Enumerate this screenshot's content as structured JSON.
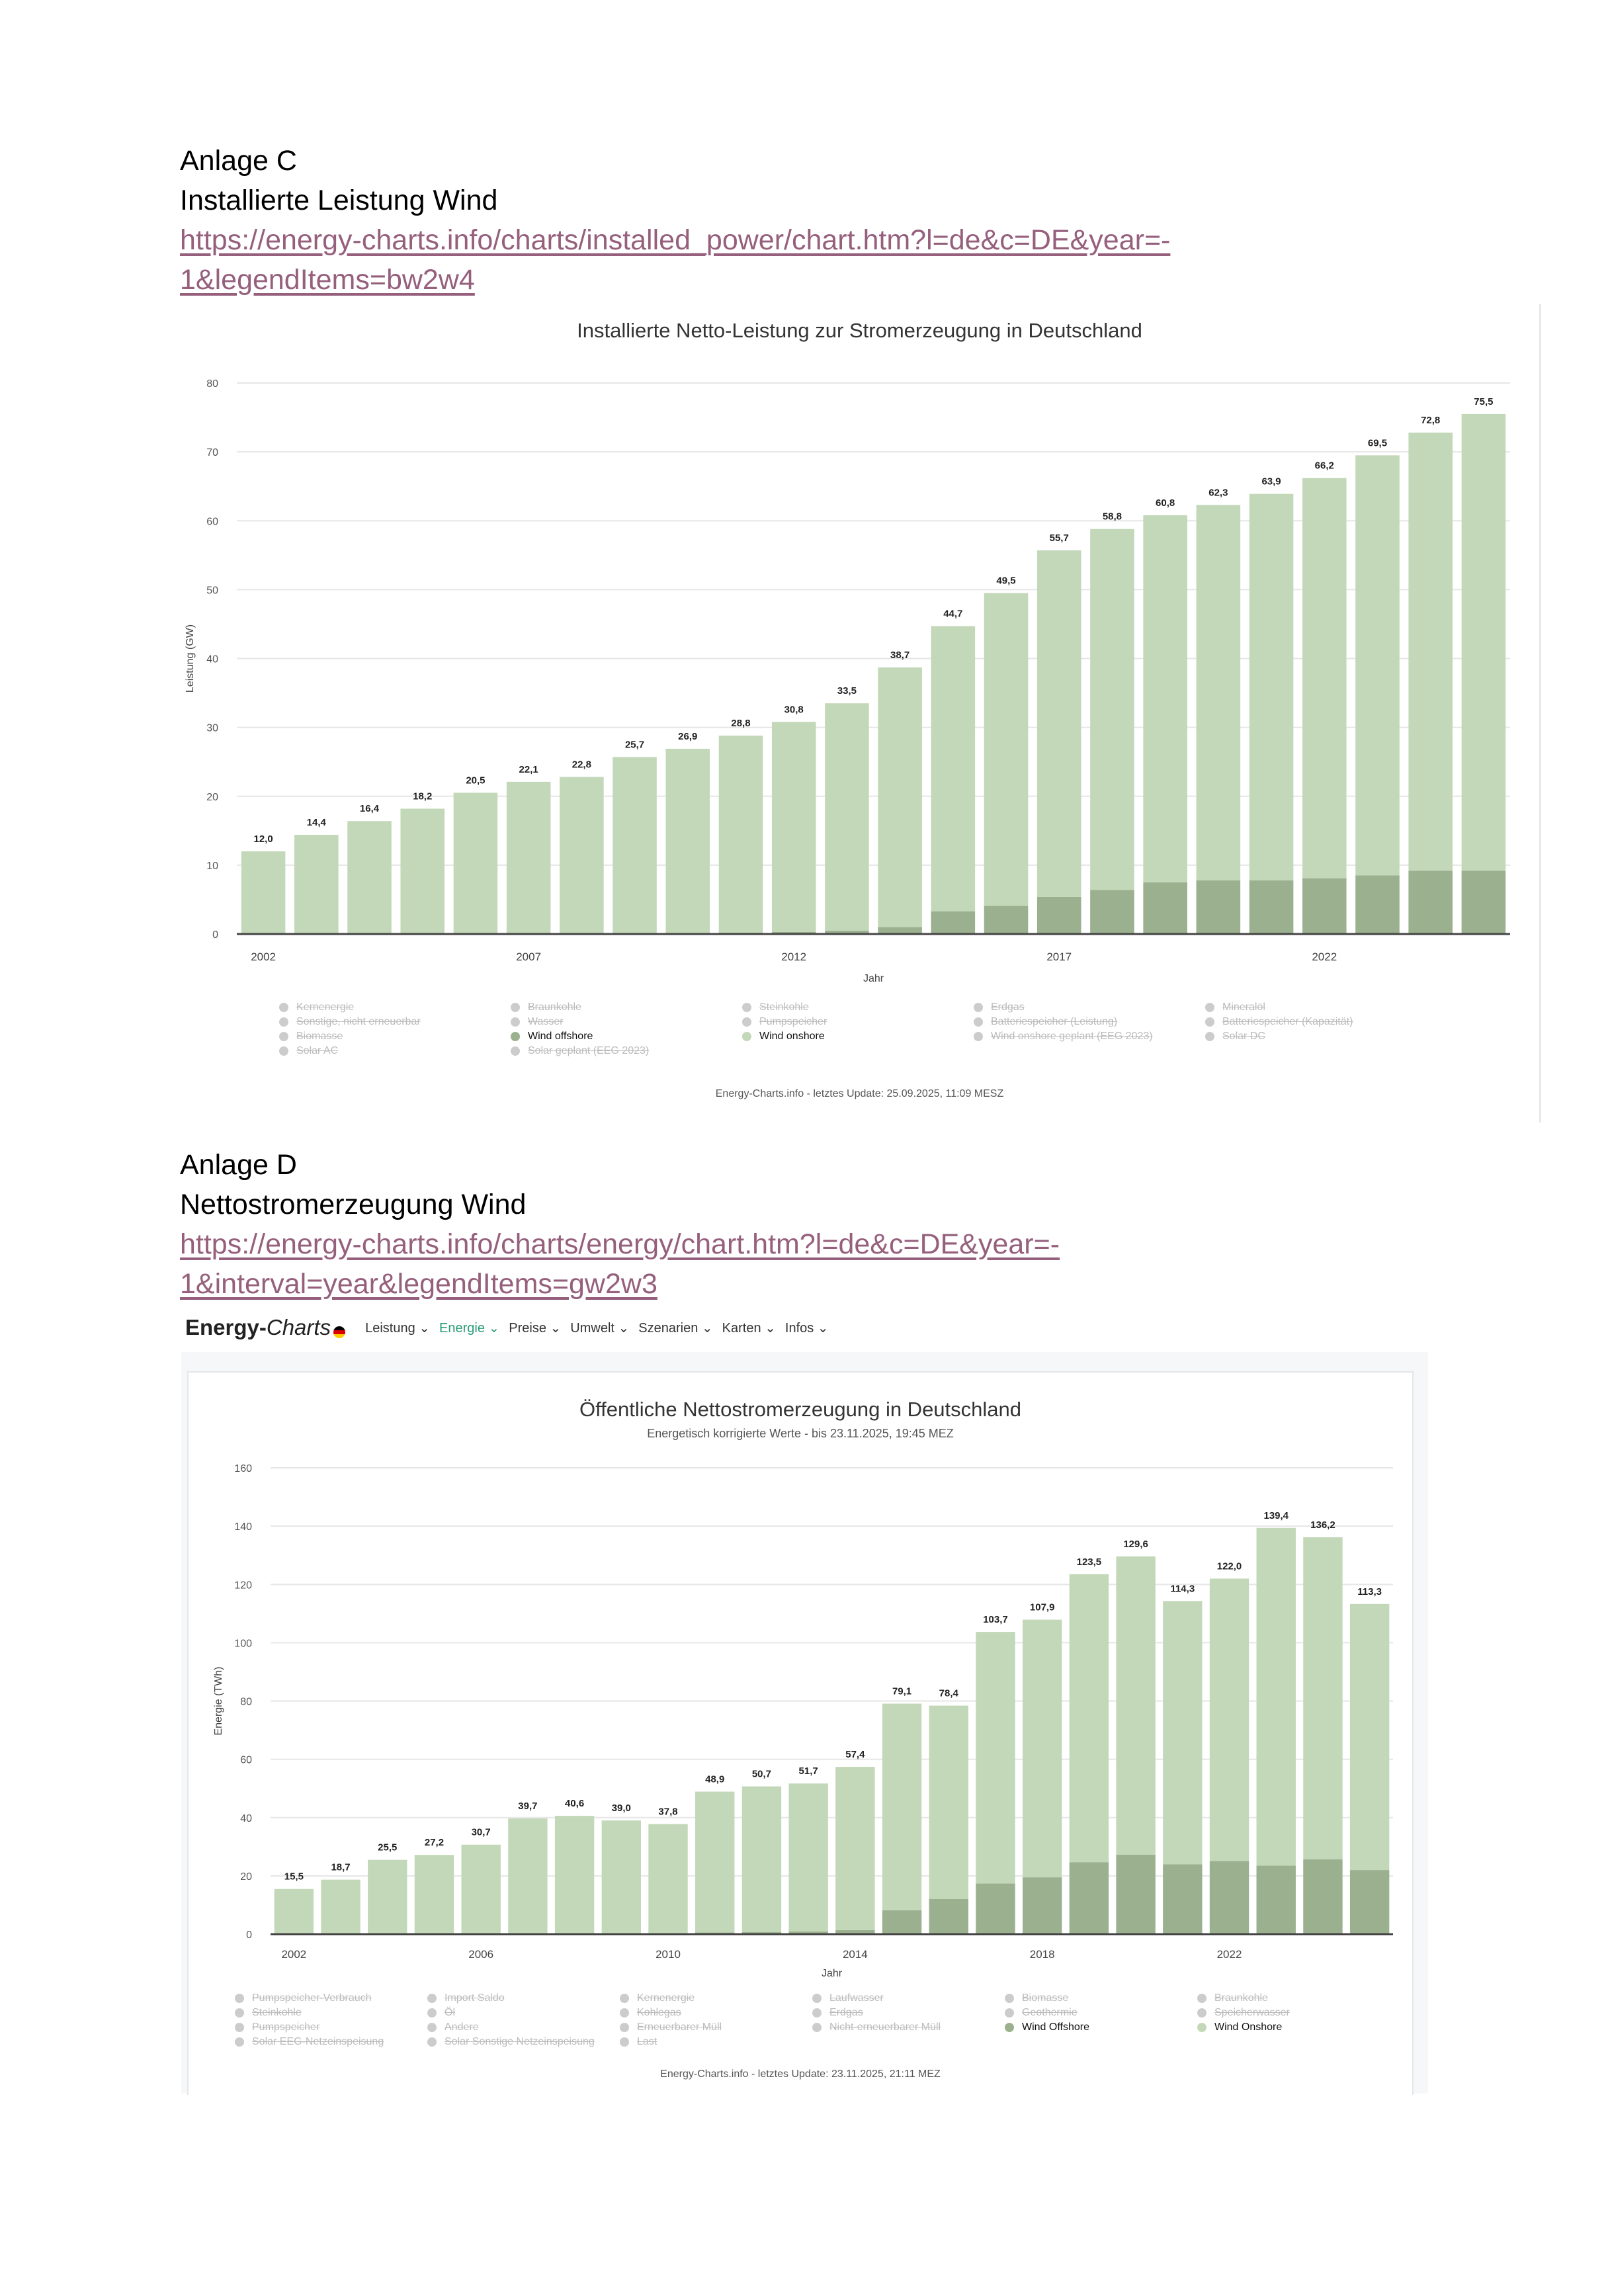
{
  "anlage_c": {
    "heading": "Anlage C",
    "subheading": "Installierte Leistung Wind",
    "link_line1": "https://energy-charts.info/charts/installed_power/chart.htm?l=de&c=DE&year=-",
    "link_line2": "1&legendItems=bw2w4"
  },
  "anlage_d": {
    "heading": "Anlage D",
    "subheading": "Nettostromerzeugung Wind",
    "link_line1": "https://energy-charts.info/charts/energy/chart.htm?l=de&c=DE&year=-",
    "link_line2": "1&interval=year&legendItems=gw2w3"
  },
  "nav": {
    "logo_bold": "Energy-",
    "logo_italic": "Charts",
    "items": [
      {
        "label": "Leistung ⌄"
      },
      {
        "label": "Energie ⌄",
        "active": true
      },
      {
        "label": "Preise ⌄"
      },
      {
        "label": "Umwelt ⌄"
      },
      {
        "label": "Szenarien ⌄"
      },
      {
        "label": "Karten ⌄"
      },
      {
        "label": "Infos ⌄"
      }
    ]
  },
  "colors": {
    "onshore": "#c3d8b9",
    "offshore": "#9bb08f",
    "link": "#96607d",
    "nav_active": "#2a9d7a"
  },
  "chart_data": [
    {
      "type": "bar",
      "stacked": true,
      "title": "Installierte Netto-Leistung zur Stromerzeugung in Deutschland",
      "xlabel": "Jahr",
      "ylabel": "Leistung (GW)",
      "ylim": [
        0,
        80
      ],
      "yticks": [
        0,
        10,
        20,
        30,
        40,
        50,
        60,
        70,
        80
      ],
      "xticks": [
        "2002",
        "2007",
        "2012",
        "2017",
        "2022"
      ],
      "grid": true,
      "legend_placement": "bottom",
      "categories": [
        "2002",
        "2003",
        "2004",
        "2005",
        "2006",
        "2007",
        "2008",
        "2009",
        "2010",
        "2011",
        "2012",
        "2013",
        "2014",
        "2015",
        "2016",
        "2017",
        "2018",
        "2019",
        "2020",
        "2021",
        "2022",
        "2023",
        "2024",
        "2025"
      ],
      "totals": [
        12.0,
        14.4,
        16.4,
        18.2,
        20.5,
        22.1,
        22.8,
        25.7,
        26.9,
        28.8,
        30.8,
        33.5,
        38.7,
        44.7,
        49.5,
        55.7,
        58.8,
        60.8,
        62.3,
        63.9,
        66.2,
        69.5,
        72.8,
        75.5
      ],
      "series": [
        {
          "name": "Wind offshore",
          "color": "#9bb08f",
          "values": [
            0,
            0,
            0,
            0,
            0,
            0,
            0,
            0.1,
            0.1,
            0.2,
            0.3,
            0.5,
            1.0,
            3.3,
            4.1,
            5.4,
            6.4,
            7.5,
            7.8,
            7.8,
            8.1,
            8.5,
            9.2,
            9.2
          ]
        },
        {
          "name": "Wind onshore",
          "color": "#c3d8b9",
          "values": [
            12.0,
            14.4,
            16.4,
            18.2,
            20.5,
            22.1,
            22.8,
            25.6,
            26.8,
            28.6,
            30.5,
            33.0,
            37.7,
            41.4,
            45.4,
            50.3,
            52.4,
            53.3,
            54.5,
            56.1,
            58.1,
            61.0,
            63.6,
            66.3
          ]
        }
      ],
      "legend_columns": [
        [
          {
            "label": "Kernenergie"
          },
          {
            "label": "Sonstige, nicht erneuerbar"
          },
          {
            "label": "Biomasse"
          },
          {
            "label": "Solar AC"
          }
        ],
        [
          {
            "label": "Braunkohle"
          },
          {
            "label": "Wasser"
          },
          {
            "label": "Wind offshore",
            "active": true,
            "color": "#9bb08f"
          },
          {
            "label": "Solar geplant (EEG 2023)"
          }
        ],
        [
          {
            "label": "Steinkohle"
          },
          {
            "label": "Pumpspeicher"
          },
          {
            "label": "Wind onshore",
            "active": true,
            "color": "#c3d8b9"
          }
        ],
        [
          {
            "label": "Erdgas"
          },
          {
            "label": "Batteriespeicher (Leistung)"
          },
          {
            "label": "Wind onshore geplant (EEG 2023)"
          }
        ],
        [
          {
            "label": "Mineralöl"
          },
          {
            "label": "Batteriespeicher (Kapazität)"
          },
          {
            "label": "Solar DC"
          }
        ]
      ],
      "footer": "Energy-Charts.info - letztes Update: 25.09.2025, 11:09 MESZ"
    },
    {
      "type": "bar",
      "stacked": true,
      "title": "Öffentliche Nettostromerzeugung in Deutschland",
      "subtitle": "Energetisch korrigierte Werte - bis 23.11.2025, 19:45 MEZ",
      "xlabel": "Jahr",
      "ylabel": "Energie (TWh)",
      "ylim": [
        0,
        160
      ],
      "yticks": [
        0,
        20,
        40,
        60,
        80,
        100,
        120,
        140,
        160
      ],
      "xticks": [
        "2002",
        "2006",
        "2010",
        "2014",
        "2018",
        "2022"
      ],
      "grid": true,
      "legend_placement": "bottom",
      "categories": [
        "2002",
        "2003",
        "2004",
        "2005",
        "2006",
        "2007",
        "2008",
        "2009",
        "2010",
        "2011",
        "2012",
        "2013",
        "2014",
        "2015",
        "2016",
        "2017",
        "2018",
        "2019",
        "2020",
        "2021",
        "2022",
        "2023",
        "2024",
        "2025"
      ],
      "totals": [
        15.5,
        18.7,
        25.5,
        27.2,
        30.7,
        39.7,
        40.6,
        39.0,
        37.8,
        48.9,
        50.7,
        51.7,
        57.4,
        79.1,
        78.4,
        103.7,
        107.9,
        123.5,
        129.6,
        114.3,
        122.0,
        139.4,
        136.2,
        113.3
      ],
      "series": [
        {
          "name": "Wind Offshore",
          "color": "#9bb08f",
          "values": [
            0,
            0,
            0,
            0,
            0,
            0,
            0,
            0,
            0.2,
            0.6,
            0.7,
            0.9,
            1.4,
            8.2,
            12.1,
            17.4,
            19.5,
            24.7,
            27.3,
            24.0,
            25.1,
            23.5,
            25.7,
            22.0
          ]
        },
        {
          "name": "Wind Onshore",
          "color": "#c3d8b9",
          "values": [
            15.5,
            18.7,
            25.5,
            27.2,
            30.7,
            39.7,
            40.6,
            39.0,
            37.6,
            48.3,
            50.0,
            50.8,
            56.0,
            70.9,
            66.3,
            86.3,
            88.4,
            98.8,
            102.3,
            90.3,
            96.9,
            115.9,
            110.5,
            91.3
          ]
        }
      ],
      "legend_columns": [
        [
          {
            "label": "Pumpspeicher-Verbrauch"
          },
          {
            "label": "Steinkohle"
          },
          {
            "label": "Pumpspeicher"
          },
          {
            "label": "Solar EEG-Netzeinspeisung"
          }
        ],
        [
          {
            "label": "Import Saldo"
          },
          {
            "label": "Öl"
          },
          {
            "label": "Andere"
          },
          {
            "label": "Solar Sonstige Netzeinspeisung"
          }
        ],
        [
          {
            "label": "Kernenergie"
          },
          {
            "label": "Kohlegas"
          },
          {
            "label": "Erneuerbarer Müll"
          },
          {
            "label": "Last"
          }
        ],
        [
          {
            "label": "Laufwasser"
          },
          {
            "label": "Erdgas"
          },
          {
            "label": "Nicht-erneuerbarer Müll"
          }
        ],
        [
          {
            "label": "Biomasse"
          },
          {
            "label": "Geothermie"
          },
          {
            "label": "Wind Offshore",
            "active": true,
            "color": "#9bb08f"
          }
        ],
        [
          {
            "label": "Braunkohle"
          },
          {
            "label": "Speicherwasser"
          },
          {
            "label": "Wind Onshore",
            "active": true,
            "color": "#c3d8b9"
          }
        ]
      ],
      "footer": "Energy-Charts.info - letztes Update: 23.11.2025, 21:11 MEZ"
    }
  ]
}
